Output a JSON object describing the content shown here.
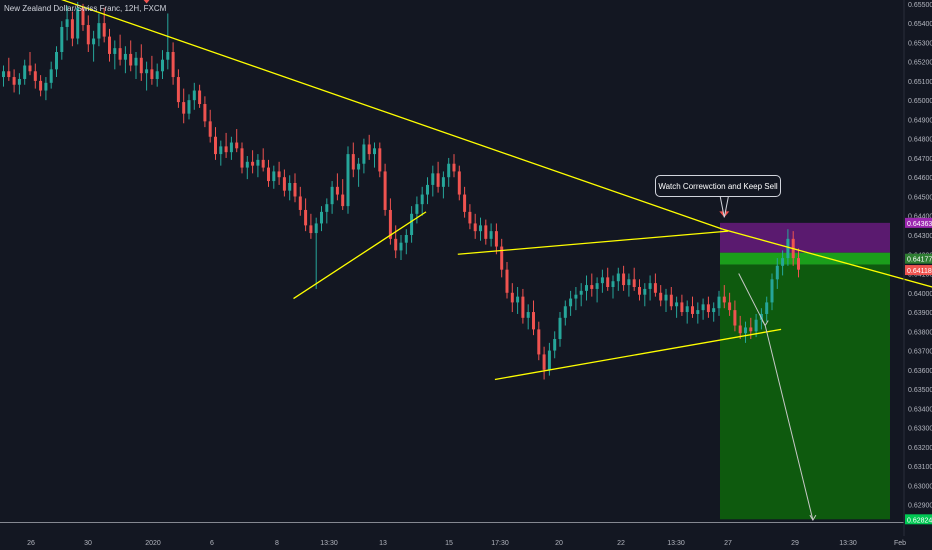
{
  "title": "New Zealand Dollar/Swiss Franc, 12H, FXCM",
  "callout": "Watch Correwction and Keep Sell",
  "colors": {
    "background": "#131722",
    "up": "#26a69a",
    "down": "#ef5350",
    "trendline": "#ffff00",
    "target_zone": "#0e5a0e",
    "stop_zone": "#5a1a6f",
    "entry_band": "#1b9e1b",
    "arrow": "#ef5350",
    "projection": "#c8c8c8"
  },
  "chart_data": {
    "type": "candlestick",
    "title": "New Zealand Dollar/Swiss Franc, 12H, FXCM",
    "xlabel": "",
    "ylabel": "",
    "ylim": [
      0.6281,
      0.6552
    ],
    "y_ticks": [
      "0.65500",
      "0.65400",
      "0.65300",
      "0.65200",
      "0.65100",
      "0.65000",
      "0.64900",
      "0.64800",
      "0.64700",
      "0.64600",
      "0.64500",
      "0.64400",
      "0.64300",
      "0.64200",
      "0.64100",
      "0.64000",
      "0.63900",
      "0.63800",
      "0.63700",
      "0.63600",
      "0.63500",
      "0.63400",
      "0.63300",
      "0.63200",
      "0.63100",
      "0.63000",
      "0.62900"
    ],
    "x_ticks": [
      "26",
      "30",
      "2020",
      "6",
      "8",
      "13:30",
      "13",
      "15",
      "17:30",
      "20",
      "22",
      "13:30",
      "27",
      "29",
      "13:30",
      "Feb"
    ],
    "price_labels": [
      {
        "text": "0.64363",
        "value": 0.64363,
        "color": "#9c27b0"
      },
      {
        "text": "0.64177",
        "value": 0.64177,
        "color": "#2e7d32"
      },
      {
        "text": "0.64118",
        "value": 0.64118,
        "color": "#ef5350"
      },
      {
        "text": "0.62824",
        "value": 0.62824,
        "color": "#00c853"
      }
    ],
    "position": {
      "side": "short",
      "entry": 0.64177,
      "stop": 0.64363,
      "target": 0.62824
    },
    "annotation": "Watch Correwction and Keep Sell",
    "candles": [
      [
        0.6512,
        0.6518,
        0.6507,
        0.6515
      ],
      [
        0.6515,
        0.6522,
        0.651,
        0.6512
      ],
      [
        0.6512,
        0.6516,
        0.6504,
        0.6508
      ],
      [
        0.6508,
        0.6514,
        0.6503,
        0.6511
      ],
      [
        0.6511,
        0.6521,
        0.6508,
        0.6518
      ],
      [
        0.6518,
        0.6525,
        0.6513,
        0.6515
      ],
      [
        0.6515,
        0.6519,
        0.6506,
        0.651
      ],
      [
        0.651,
        0.6513,
        0.6502,
        0.6505
      ],
      [
        0.6505,
        0.6512,
        0.65,
        0.6509
      ],
      [
        0.6509,
        0.652,
        0.6506,
        0.6516
      ],
      [
        0.6516,
        0.6528,
        0.6512,
        0.6525
      ],
      [
        0.6525,
        0.6541,
        0.6521,
        0.6538
      ],
      [
        0.6538,
        0.6549,
        0.6531,
        0.6542
      ],
      [
        0.6542,
        0.6546,
        0.6528,
        0.6532
      ],
      [
        0.6532,
        0.6551,
        0.6529,
        0.6548
      ],
      [
        0.6548,
        0.655,
        0.6536,
        0.6539
      ],
      [
        0.6539,
        0.6544,
        0.6525,
        0.6529
      ],
      [
        0.6529,
        0.6536,
        0.652,
        0.6532
      ],
      [
        0.6532,
        0.6545,
        0.6528,
        0.654
      ],
      [
        0.654,
        0.6548,
        0.653,
        0.6533
      ],
      [
        0.6533,
        0.6537,
        0.652,
        0.6524
      ],
      [
        0.6524,
        0.6531,
        0.6516,
        0.6527
      ],
      [
        0.6527,
        0.6534,
        0.6518,
        0.6521
      ],
      [
        0.6521,
        0.6528,
        0.6514,
        0.6524
      ],
      [
        0.6524,
        0.6531,
        0.6515,
        0.6518
      ],
      [
        0.6518,
        0.6525,
        0.6511,
        0.6522
      ],
      [
        0.6522,
        0.6529,
        0.651,
        0.6514
      ],
      [
        0.6514,
        0.652,
        0.6505,
        0.6516
      ],
      [
        0.6516,
        0.6523,
        0.6508,
        0.6511
      ],
      [
        0.6511,
        0.6519,
        0.6507,
        0.6515
      ],
      [
        0.6515,
        0.6526,
        0.6511,
        0.6521
      ],
      [
        0.6521,
        0.6545,
        0.6516,
        0.6525
      ],
      [
        0.6525,
        0.653,
        0.6508,
        0.6512
      ],
      [
        0.6512,
        0.6516,
        0.6496,
        0.6499
      ],
      [
        0.6499,
        0.6506,
        0.6488,
        0.6493
      ],
      [
        0.6493,
        0.6503,
        0.649,
        0.65
      ],
      [
        0.65,
        0.6509,
        0.6495,
        0.6505
      ],
      [
        0.6505,
        0.6508,
        0.6496,
        0.6498
      ],
      [
        0.6498,
        0.6502,
        0.6486,
        0.6489
      ],
      [
        0.6489,
        0.6495,
        0.6478,
        0.6481
      ],
      [
        0.6481,
        0.6486,
        0.6469,
        0.6472
      ],
      [
        0.6472,
        0.6479,
        0.6466,
        0.6476
      ],
      [
        0.6476,
        0.6483,
        0.647,
        0.6473
      ],
      [
        0.6473,
        0.6481,
        0.6469,
        0.6478
      ],
      [
        0.6478,
        0.6485,
        0.6473,
        0.6475
      ],
      [
        0.6475,
        0.6478,
        0.6462,
        0.6465
      ],
      [
        0.6465,
        0.6471,
        0.6459,
        0.6468
      ],
      [
        0.6468,
        0.6474,
        0.6462,
        0.6466
      ],
      [
        0.6466,
        0.6472,
        0.646,
        0.6469
      ],
      [
        0.6469,
        0.6475,
        0.6463,
        0.6465
      ],
      [
        0.6465,
        0.6469,
        0.6455,
        0.6458
      ],
      [
        0.6458,
        0.6466,
        0.6454,
        0.6463
      ],
      [
        0.6463,
        0.6468,
        0.6456,
        0.646
      ],
      [
        0.646,
        0.6464,
        0.645,
        0.6453
      ],
      [
        0.6453,
        0.6461,
        0.6448,
        0.6457
      ],
      [
        0.6457,
        0.6462,
        0.6447,
        0.645
      ],
      [
        0.645,
        0.6455,
        0.644,
        0.6443
      ],
      [
        0.6443,
        0.6449,
        0.6432,
        0.6435
      ],
      [
        0.6435,
        0.6441,
        0.6428,
        0.6431
      ],
      [
        0.6431,
        0.6439,
        0.6402,
        0.6436
      ],
      [
        0.6436,
        0.6445,
        0.6432,
        0.6442
      ],
      [
        0.6442,
        0.6449,
        0.6436,
        0.6446
      ],
      [
        0.6446,
        0.6458,
        0.6441,
        0.6455
      ],
      [
        0.6455,
        0.6462,
        0.6448,
        0.6451
      ],
      [
        0.6451,
        0.6459,
        0.6443,
        0.6445
      ],
      [
        0.6445,
        0.6476,
        0.6441,
        0.6472
      ],
      [
        0.6472,
        0.6478,
        0.646,
        0.6464
      ],
      [
        0.6464,
        0.647,
        0.6455,
        0.6467
      ],
      [
        0.6467,
        0.648,
        0.6462,
        0.6477
      ],
      [
        0.6477,
        0.6482,
        0.6469,
        0.6472
      ],
      [
        0.6472,
        0.6478,
        0.6465,
        0.6475
      ],
      [
        0.6475,
        0.6478,
        0.646,
        0.6463
      ],
      [
        0.6463,
        0.6467,
        0.644,
        0.6443
      ],
      [
        0.6443,
        0.6449,
        0.6425,
        0.6428
      ],
      [
        0.6428,
        0.6435,
        0.6418,
        0.6422
      ],
      [
        0.6422,
        0.643,
        0.6417,
        0.6426
      ],
      [
        0.6426,
        0.6433,
        0.642,
        0.643
      ],
      [
        0.643,
        0.6445,
        0.6426,
        0.6441
      ],
      [
        0.6441,
        0.645,
        0.6436,
        0.6446
      ],
      [
        0.6446,
        0.6455,
        0.644,
        0.6451
      ],
      [
        0.6451,
        0.646,
        0.6446,
        0.6456
      ],
      [
        0.6456,
        0.6466,
        0.645,
        0.6462
      ],
      [
        0.6462,
        0.6468,
        0.6452,
        0.6455
      ],
      [
        0.6455,
        0.6463,
        0.6449,
        0.646
      ],
      [
        0.646,
        0.647,
        0.6455,
        0.6467
      ],
      [
        0.6467,
        0.6472,
        0.646,
        0.6463
      ],
      [
        0.6463,
        0.6466,
        0.6448,
        0.6451
      ],
      [
        0.6451,
        0.6455,
        0.6439,
        0.6442
      ],
      [
        0.6442,
        0.6446,
        0.6433,
        0.6436
      ],
      [
        0.6436,
        0.6441,
        0.6428,
        0.6432
      ],
      [
        0.6432,
        0.6439,
        0.6427,
        0.6435
      ],
      [
        0.6435,
        0.6438,
        0.6425,
        0.6428
      ],
      [
        0.6428,
        0.6436,
        0.6424,
        0.6432
      ],
      [
        0.6432,
        0.6436,
        0.642,
        0.6424
      ],
      [
        0.6424,
        0.6428,
        0.6408,
        0.6412
      ],
      [
        0.6412,
        0.6416,
        0.6397,
        0.64
      ],
      [
        0.64,
        0.6405,
        0.639,
        0.6395
      ],
      [
        0.6395,
        0.6403,
        0.6389,
        0.6398
      ],
      [
        0.6398,
        0.6402,
        0.6384,
        0.6387
      ],
      [
        0.6387,
        0.6394,
        0.6381,
        0.639
      ],
      [
        0.639,
        0.6396,
        0.6378,
        0.6381
      ],
      [
        0.6381,
        0.6385,
        0.6365,
        0.6368
      ],
      [
        0.6368,
        0.6372,
        0.6355,
        0.636
      ],
      [
        0.636,
        0.6374,
        0.6357,
        0.637
      ],
      [
        0.637,
        0.638,
        0.6366,
        0.6376
      ],
      [
        0.6376,
        0.639,
        0.6372,
        0.6387
      ],
      [
        0.6387,
        0.6396,
        0.6383,
        0.6393
      ],
      [
        0.6393,
        0.6401,
        0.6388,
        0.6397
      ],
      [
        0.6397,
        0.6403,
        0.6391,
        0.6399
      ],
      [
        0.6399,
        0.6405,
        0.6393,
        0.6401
      ],
      [
        0.6401,
        0.6409,
        0.6396,
        0.6404
      ],
      [
        0.6404,
        0.641,
        0.6398,
        0.6402
      ],
      [
        0.6402,
        0.6408,
        0.6395,
        0.6405
      ],
      [
        0.6405,
        0.6412,
        0.64,
        0.6408
      ],
      [
        0.6408,
        0.6413,
        0.6401,
        0.6403
      ],
      [
        0.6403,
        0.6409,
        0.6397,
        0.6406
      ],
      [
        0.6406,
        0.6413,
        0.6401,
        0.641
      ],
      [
        0.641,
        0.6414,
        0.6401,
        0.6404
      ],
      [
        0.6404,
        0.641,
        0.6398,
        0.6407
      ],
      [
        0.6407,
        0.6413,
        0.6401,
        0.6403
      ],
      [
        0.6403,
        0.6407,
        0.6396,
        0.6399
      ],
      [
        0.6399,
        0.6405,
        0.6393,
        0.6402
      ],
      [
        0.6402,
        0.6409,
        0.6396,
        0.6405
      ],
      [
        0.6405,
        0.641,
        0.6398,
        0.64
      ],
      [
        0.64,
        0.6404,
        0.6393,
        0.6396
      ],
      [
        0.6396,
        0.6402,
        0.639,
        0.6399
      ],
      [
        0.6399,
        0.6403,
        0.6391,
        0.6393
      ],
      [
        0.6393,
        0.6398,
        0.6387,
        0.6395
      ],
      [
        0.6395,
        0.6399,
        0.6388,
        0.639
      ],
      [
        0.639,
        0.6396,
        0.6384,
        0.6393
      ],
      [
        0.6393,
        0.6398,
        0.6387,
        0.6389
      ],
      [
        0.6389,
        0.6395,
        0.6384,
        0.6391
      ],
      [
        0.6391,
        0.6397,
        0.6386,
        0.6394
      ],
      [
        0.6394,
        0.6398,
        0.6387,
        0.639
      ],
      [
        0.639,
        0.6395,
        0.6385,
        0.6392
      ],
      [
        0.6392,
        0.6401,
        0.6388,
        0.6398
      ],
      [
        0.6398,
        0.6404,
        0.6392,
        0.6395
      ],
      [
        0.6395,
        0.64,
        0.6388,
        0.6391
      ],
      [
        0.6391,
        0.6396,
        0.638,
        0.6383
      ],
      [
        0.6383,
        0.6388,
        0.6376,
        0.6379
      ],
      [
        0.6379,
        0.6385,
        0.6374,
        0.6382
      ],
      [
        0.6382,
        0.6387,
        0.6376,
        0.638
      ],
      [
        0.638,
        0.6389,
        0.6377,
        0.6386
      ],
      [
        0.6386,
        0.6392,
        0.6381,
        0.6389
      ],
      [
        0.6389,
        0.6398,
        0.6385,
        0.6395
      ],
      [
        0.6395,
        0.641,
        0.6391,
        0.6407
      ],
      [
        0.6407,
        0.6418,
        0.6402,
        0.6414
      ],
      [
        0.6414,
        0.6422,
        0.6409,
        0.6418
      ],
      [
        0.6418,
        0.6433,
        0.6414,
        0.6428
      ],
      [
        0.6428,
        0.6432,
        0.6414,
        0.6418
      ],
      [
        0.6418,
        0.6423,
        0.6408,
        0.6412
      ]
    ],
    "trendlines": [
      {
        "name": "",
        "points": [
          [
            0,
            0.6563
          ],
          [
            136,
            0.6433
          ]
        ]
      },
      {
        "name": "",
        "points": [
          [
            136,
            0.6433
          ],
          [
            190,
            0.6392
          ]
        ]
      },
      {
        "name": "",
        "points": [
          [
            55,
            0.6397
          ],
          [
            80,
            0.6442
          ]
        ]
      },
      {
        "name": "",
        "points": [
          [
            86,
            0.642
          ],
          [
            137,
            0.6432
          ]
        ]
      },
      {
        "name": "",
        "points": [
          [
            93,
            0.6355
          ],
          [
            147,
            0.6381
          ]
        ]
      }
    ],
    "projection": [
      [
        139,
        0.641
      ],
      [
        144,
        0.6383
      ],
      [
        153,
        0.6282
      ]
    ],
    "markers": [
      {
        "index": 27,
        "value": 0.6546,
        "type": "arrow-down"
      },
      {
        "index": 136,
        "value": 0.6435,
        "type": "arrow-down"
      }
    ]
  }
}
